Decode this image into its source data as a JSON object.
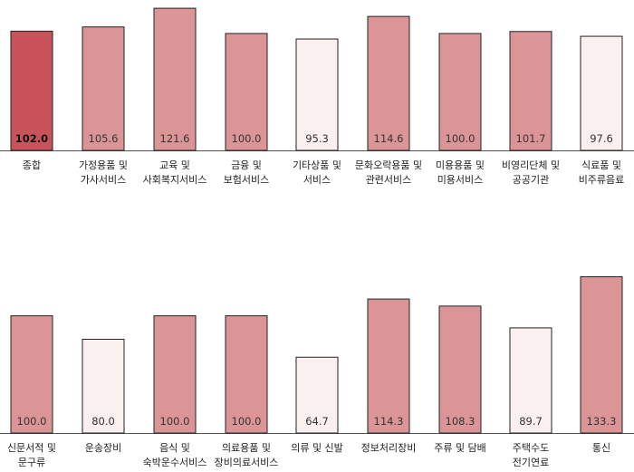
{
  "chart_data": [
    {
      "type": "bar",
      "categories": [
        "종합",
        "가정용품 및\n가사서비스",
        "교육 및\n사회복지서비스",
        "금융 및\n보험서비스",
        "기타상품 및\n서비스",
        "문화오락용품 및\n관련서비스",
        "미용용품 및\n미용서비스",
        "비영리단체 및\n공공기관",
        "식료품 및\n비주류음료"
      ],
      "values": [
        102.0,
        105.6,
        121.6,
        100.0,
        95.3,
        114.6,
        100.0,
        101.7,
        97.6
      ],
      "value_labels": [
        "102.0",
        "105.6",
        "121.6",
        "100.0",
        "95.3",
        "114.6",
        "100.0",
        "101.7",
        "97.6"
      ],
      "bar_colors": [
        "#c8535a",
        "#dc9597",
        "#dc9597",
        "#dc9597",
        "#faf0f0",
        "#dc9597",
        "#dc9597",
        "#dc9597",
        "#faf0f0"
      ],
      "ylim": [
        0,
        124
      ],
      "grid": false
    },
    {
      "type": "bar",
      "categories": [
        "신문서적 및\n문구류",
        "운송장비",
        "음식 및\n숙박운수서비스",
        "의료용품 및\n장비의료서비스",
        "의류 및 신발",
        "정보처리장비",
        "주류 및 담배",
        "주택수도\n전기연료",
        "통신"
      ],
      "values": [
        100.0,
        80.0,
        100.0,
        100.0,
        64.7,
        114.3,
        108.3,
        89.7,
        133.3
      ],
      "value_labels": [
        "100.0",
        "80.0",
        "100.0",
        "100.0",
        "64.7",
        "114.3",
        "108.3",
        "89.7",
        "133.3"
      ],
      "bar_colors": [
        "#dc9597",
        "#faf0f0",
        "#dc9597",
        "#dc9597",
        "#faf0f0",
        "#dc9597",
        "#dc9597",
        "#faf0f0",
        "#dc9597"
      ],
      "ylim": [
        0,
        136
      ],
      "grid": false
    }
  ]
}
